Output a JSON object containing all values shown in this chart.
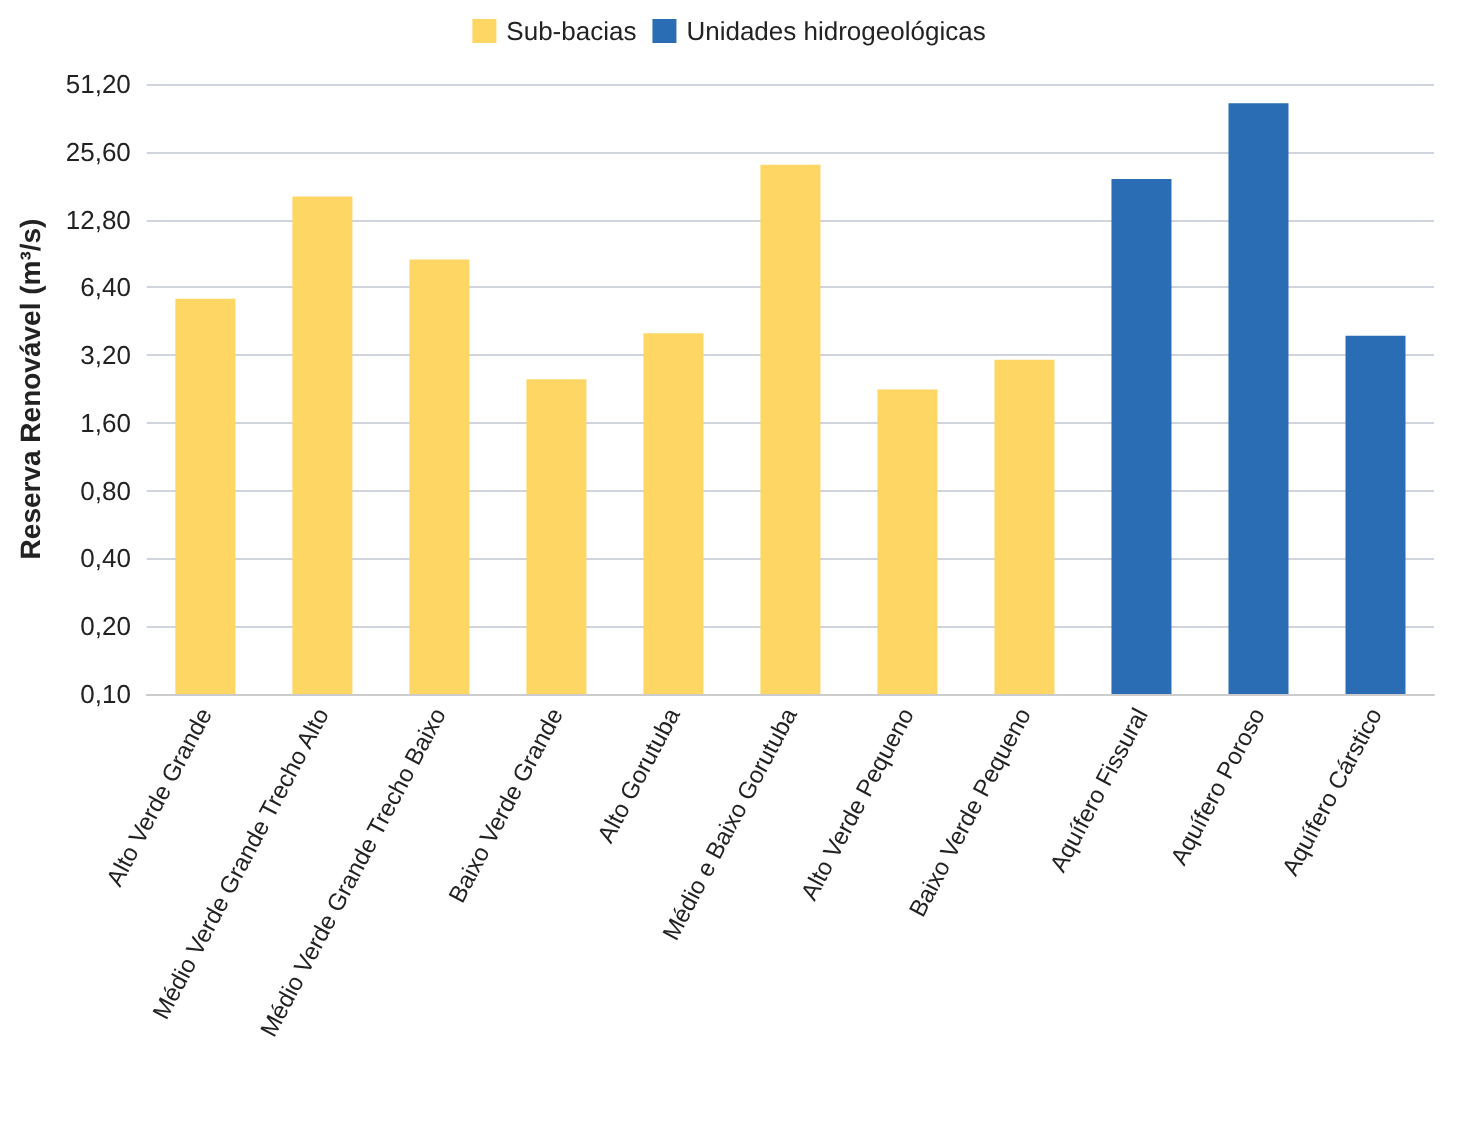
{
  "chart_data": {
    "type": "bar",
    "ylabel": "Reserva Renovável (m³/s)",
    "categories": [
      "Alto Verde Grande",
      "Médio Verde Grande Trecho Alto",
      "Médio Verde Grande Trecho Baixo",
      "Baixo Verde Grande",
      "Alto Gorutuba",
      "Médio e Baixo Gorutuba",
      "Alto Verde Pequeno",
      "Baixo Verde Pequeno",
      "Aquífero Fissural",
      "Aquífero Poroso",
      "Aquífero Cárstico"
    ],
    "series": [
      {
        "name": "Sub-bacias",
        "color": "#fdd663",
        "values": [
          5.7,
          16.2,
          8.5,
          2.5,
          4.0,
          22.4,
          2.25,
          3.05,
          null,
          null,
          null
        ]
      },
      {
        "name": "Unidades hidrogeológicas",
        "color": "#2a6db5",
        "values": [
          null,
          null,
          null,
          null,
          null,
          null,
          null,
          null,
          19.4,
          42,
          3.9
        ]
      }
    ],
    "log": "y",
    "ylim": [
      0.1,
      51.2
    ],
    "yticks": [
      {
        "value": 0.1,
        "label": "0,10"
      },
      {
        "value": 0.2,
        "label": "0,20"
      },
      {
        "value": 0.4,
        "label": "0,40"
      },
      {
        "value": 0.8,
        "label": "0,80"
      },
      {
        "value": 1.6,
        "label": "1,60"
      },
      {
        "value": 3.2,
        "label": "3,20"
      },
      {
        "value": 6.4,
        "label": "6,40"
      },
      {
        "value": 12.8,
        "label": "12,80"
      },
      {
        "value": 25.6,
        "label": "25,60"
      },
      {
        "value": 51.2,
        "label": "51,20"
      }
    ],
    "grid": "y",
    "legend": "top"
  }
}
